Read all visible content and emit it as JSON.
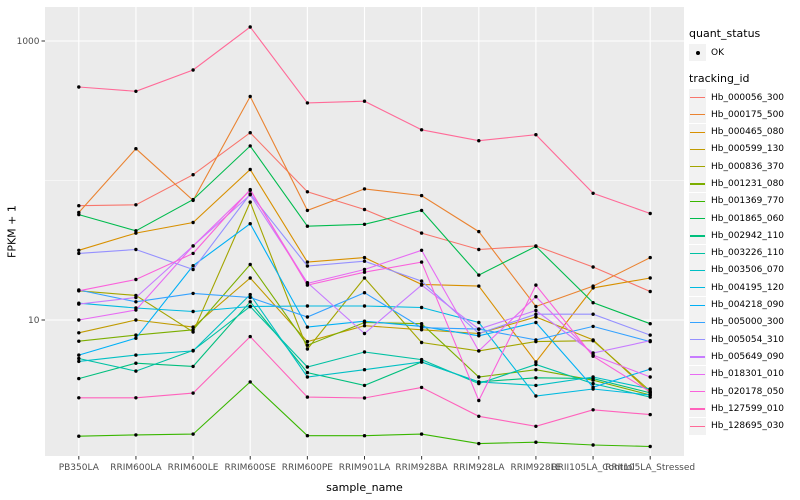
{
  "figure": {
    "background": "#FFFFFF",
    "panel_background": "#EBEBEB",
    "grid_color": "#FFFFFF",
    "axis_text_color": "#4D4D4D",
    "tick_color": "#333333",
    "point_color": "#000000"
  },
  "axes": {
    "x_title": "sample_name",
    "y_title": "FPKM + 1",
    "y_ticks": [
      {
        "label": "1000",
        "value": 1000
      },
      {
        "label": "10",
        "value": 10
      }
    ],
    "y_minor_breaks": [
      100
    ]
  },
  "legend": {
    "quant_status": {
      "title": "quant_status",
      "items": [
        {
          "label": "OK",
          "symbol": "point"
        }
      ]
    },
    "tracking_id": {
      "title": "tracking_id"
    }
  },
  "chart_data": {
    "type": "line",
    "title": "",
    "xlabel": "sample_name",
    "ylabel": "FPKM + 1",
    "y_scale": "log10",
    "ylim": [
      1.06,
      1724
    ],
    "grid": true,
    "legend_position": "right",
    "categories": [
      "PB350LA",
      "RRIM600LA",
      "RRIM600LE",
      "RRIM600SE",
      "RRIM600PE",
      "RRIM901LA",
      "RRIM928BA",
      "RRIM928LA",
      "RRIM928LE",
      "RRII105LA_Control",
      "RRII105LA_Stressed"
    ],
    "series": [
      {
        "name": "Hb_000056_300",
        "color": "#F8766D",
        "values": [
          66,
          67,
          110,
          220,
          83,
          62,
          42,
          32,
          34,
          24,
          16
        ]
      },
      {
        "name": "Hb_000175_500",
        "color": "#EA8331",
        "values": [
          59,
          169,
          72,
          400,
          61,
          87,
          78,
          43,
          12.5,
          17.5,
          28
        ]
      },
      {
        "name": "Hb_000465_080",
        "color": "#D89000",
        "values": [
          31.6,
          42,
          50,
          120,
          26,
          28,
          18,
          17.5,
          5,
          17,
          20
        ]
      },
      {
        "name": "Hb_000599_130",
        "color": "#C09B00",
        "values": [
          8.1,
          10,
          8.9,
          20,
          7,
          9.1,
          8.5,
          8,
          10.5,
          7.2,
          3
        ]
      },
      {
        "name": "Hb_000836_370",
        "color": "#A3A500",
        "values": [
          16.2,
          15,
          8.2,
          70,
          6.2,
          20,
          6.9,
          6,
          7,
          7.1,
          3.1
        ]
      },
      {
        "name": "Hb_001231_080",
        "color": "#7CAE00",
        "values": [
          7.05,
          7.8,
          8.5,
          25,
          6.6,
          9.6,
          9.4,
          3.9,
          4.4,
          3.7,
          2.9
        ]
      },
      {
        "name": "Hb_001369_770",
        "color": "#39B600",
        "values": [
          1.47,
          1.5,
          1.52,
          3.6,
          1.48,
          1.48,
          1.52,
          1.3,
          1.33,
          1.27,
          1.24
        ]
      },
      {
        "name": "Hb_001865_060",
        "color": "#00BB4E",
        "values": [
          57,
          43.6,
          73,
          177,
          47,
          48.5,
          61,
          21,
          33.7,
          13.3,
          9.4
        ]
      },
      {
        "name": "Hb_002942_110",
        "color": "#00BF7D",
        "values": [
          3.8,
          4.9,
          4.65,
          13.5,
          4.2,
          3.4,
          5,
          3.6,
          3.85,
          3.8,
          3
        ]
      },
      {
        "name": "Hb_003226_110",
        "color": "#00C1A3",
        "values": [
          5.3,
          4.3,
          6.05,
          12.5,
          4.6,
          5.9,
          5.2,
          3.5,
          4.8,
          3.5,
          2.8
        ]
      },
      {
        "name": "Hb_003506_070",
        "color": "#00BFC4",
        "values": [
          5.05,
          5.6,
          6,
          15.2,
          3.9,
          4.4,
          5,
          3.6,
          3.4,
          3.9,
          3.2
        ]
      },
      {
        "name": "Hb_004195_120",
        "color": "#00BAE0",
        "values": [
          13.2,
          12.2,
          11.5,
          12.5,
          12.6,
          12.6,
          12.3,
          9.6,
          2.85,
          3.2,
          2.9
        ]
      },
      {
        "name": "Hb_004218_090",
        "color": "#00B0F6",
        "values": [
          5.6,
          7.4,
          24.5,
          49,
          8.9,
          9.8,
          9,
          7.7,
          9.6,
          3.3,
          4.45
        ]
      },
      {
        "name": "Hb_005000_300",
        "color": "#35A2FF",
        "values": [
          16.4,
          13.5,
          15.5,
          14.5,
          10.5,
          15.7,
          8.8,
          8.6,
          7.2,
          9,
          7
        ]
      },
      {
        "name": "Hb_005054_310",
        "color": "#9590FF",
        "values": [
          30,
          32,
          23,
          80,
          24.4,
          26.4,
          19,
          8,
          11,
          11,
          7.8
        ]
      },
      {
        "name": "Hb_005649_090",
        "color": "#C77CFF",
        "values": [
          13,
          14.5,
          34,
          79,
          18.5,
          8,
          17.8,
          8.6,
          11.7,
          5.8,
          7.1
        ]
      },
      {
        "name": "Hb_018301_010",
        "color": "#E76BF3",
        "values": [
          10,
          11.8,
          34,
          85,
          18.3,
          23,
          31.6,
          6,
          14.7,
          5.6,
          3.9
        ]
      },
      {
        "name": "Hb_020178_050",
        "color": "#FA62DB",
        "values": [
          16.2,
          19.5,
          30,
          86,
          17.8,
          22,
          26,
          2.65,
          17.8,
          5.5,
          3.05
        ]
      },
      {
        "name": "Hb_127599_010",
        "color": "#FF62BC",
        "values": [
          2.77,
          2.77,
          2.99,
          7.6,
          2.8,
          2.76,
          3.29,
          2.04,
          1.73,
          2.27,
          2.1
        ]
      },
      {
        "name": "Hb_128695_030",
        "color": "#FF6A98",
        "values": [
          468,
          436,
          620,
          1260,
          360,
          370,
          231,
          193,
          213,
          81,
          58
        ]
      }
    ]
  }
}
